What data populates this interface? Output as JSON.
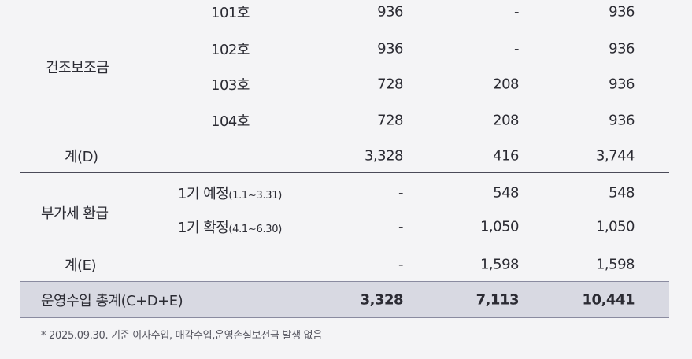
{
  "subsidy": {
    "group_label": "건조보조금",
    "rows": [
      {
        "label": "101호",
        "a": "936",
        "b": "-",
        "c": "936"
      },
      {
        "label": "102호",
        "a": "936",
        "b": "-",
        "c": "936"
      },
      {
        "label": "103호",
        "a": "728",
        "b": "208",
        "c": "936"
      },
      {
        "label": "104호",
        "a": "728",
        "b": "208",
        "c": "936"
      }
    ],
    "subtotal": {
      "label": "계(D)",
      "a": "3,328",
      "b": "416",
      "c": "3,744"
    }
  },
  "vat": {
    "group_label": "부가세 환급",
    "rows": [
      {
        "label": "1기 예정",
        "period": "(1.1~3.31)",
        "a": "-",
        "b": "548",
        "c": "548"
      },
      {
        "label": "1기 확정",
        "period": "(4.1~6.30)",
        "a": "-",
        "b": "1,050",
        "c": "1,050"
      }
    ],
    "subtotal": {
      "label": "계(E)",
      "a": "-",
      "b": "1,598",
      "c": "1,598"
    }
  },
  "total": {
    "label": "운영수입 총계(C+D+E)",
    "a": "3,328",
    "b": "7,113",
    "c": "10,441"
  },
  "footnote": "* 2025.09.30. 기준 이자수입, 매각수입,운영손실보전금 발생 없음"
}
